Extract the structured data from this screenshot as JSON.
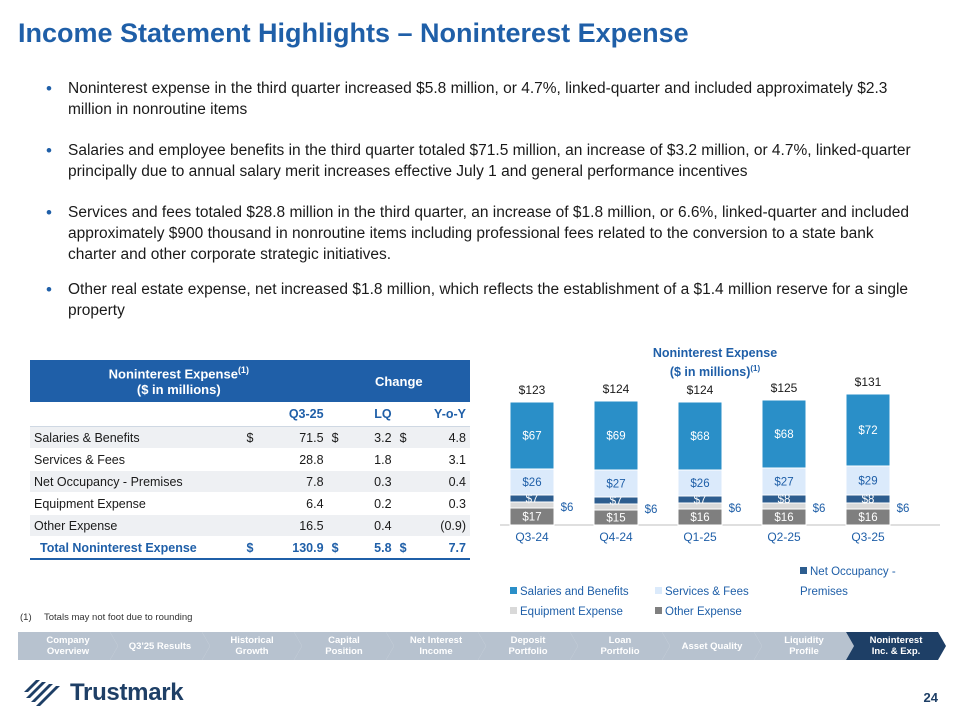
{
  "title": "Income Statement Highlights – Noninterest Expense",
  "bullets": [
    "Noninterest expense in the third quarter increased $5.8 million, or 4.7%, linked-quarter and included approximately $2.3 million in nonroutine items",
    "Salaries and employee benefits in the third quarter totaled $71.5 million, an increase of $3.2 million, or 4.7%, linked-quarter principally due to annual salary merit increases effective July 1 and general performance incentives",
    "Services and fees totaled $28.8 million in the third quarter, an increase of $1.8 million, or 6.6%, linked-quarter and included approximately $900 thousand  in nonroutine items including professional fees related to the conversion to a state bank charter and other corporate strategic initiatives.",
    "Other real estate expense, net increased $1.8 million, which reflects the establishment of a $1.4 million reserve for a single property"
  ],
  "table": {
    "header_title": "Noninterest Expense",
    "header_sup": "(1)",
    "header_subtitle": "($ in millions)",
    "header_change": "Change",
    "columns": [
      "Q3-25",
      "LQ",
      "Y-o-Y"
    ],
    "rows": [
      {
        "label": "Salaries & Benefits",
        "cur1": "$",
        "v1": "71.5",
        "cur2": "$",
        "v2": "3.2",
        "cur3": "$",
        "v3": "4.8"
      },
      {
        "label": "Services & Fees",
        "cur1": "",
        "v1": "28.8",
        "cur2": "",
        "v2": "1.8",
        "cur3": "",
        "v3": "3.1"
      },
      {
        "label": "Net Occupancy - Premises",
        "cur1": "",
        "v1": "7.8",
        "cur2": "",
        "v2": "0.3",
        "cur3": "",
        "v3": "0.4"
      },
      {
        "label": "Equipment Expense",
        "cur1": "",
        "v1": "6.4",
        "cur2": "",
        "v2": "0.2",
        "cur3": "",
        "v3": "0.3"
      },
      {
        "label": "Other Expense",
        "cur1": "",
        "v1": "16.5",
        "cur2": "",
        "v2": "0.4",
        "cur3": "",
        "v3": "(0.9)"
      }
    ],
    "total": {
      "label": "Total Noninterest Expense",
      "cur1": "$",
      "v1": "130.9",
      "cur2": "$",
      "v2": "5.8",
      "cur3": "$",
      "v3": "7.7"
    }
  },
  "footnote": {
    "num": "(1)",
    "text": "Totals may not foot due to rounding"
  },
  "chart_data": {
    "type": "bar",
    "title_line1": "Noninterest Expense",
    "title_line2": "($ in millions)",
    "title_sup": "(1)",
    "categories": [
      "Q3-24",
      "Q4-24",
      "Q1-25",
      "Q2-25",
      "Q3-25"
    ],
    "totals": [
      123,
      124,
      124,
      125,
      131
    ],
    "total_labels": [
      "$123",
      "$124",
      "$124",
      "$125",
      "$131"
    ],
    "series": [
      {
        "name": "Other Expense",
        "values": [
          17,
          15,
          16,
          16,
          16
        ],
        "color": "#7f7f7f",
        "labels": [
          "$17",
          "$15",
          "$16",
          "$16",
          "$16"
        ]
      },
      {
        "name": "Equipment Expense",
        "values": [
          6,
          6,
          6,
          6,
          6
        ],
        "color": "#d9d9d9",
        "labels": [
          "$6",
          "$6",
          "$6",
          "$6",
          "$6"
        ]
      },
      {
        "name": "Net Occupancy - Premises",
        "values": [
          7,
          7,
          7,
          8,
          8
        ],
        "color": "#2d5d8f",
        "labels": [
          "$7",
          "$7",
          "$7",
          "$8",
          "$8"
        ]
      },
      {
        "name": "Services & Fees",
        "values": [
          26,
          27,
          26,
          27,
          29
        ],
        "color": "#dbeafb",
        "labels": [
          "$26",
          "$27",
          "$26",
          "$27",
          "$29"
        ]
      },
      {
        "name": "Salaries and Benefits",
        "values": [
          67,
          69,
          68,
          68,
          72
        ],
        "color": "#2a8fc8",
        "labels": [
          "$67",
          "$69",
          "$68",
          "$68",
          "$72"
        ]
      }
    ],
    "legend_order": [
      "Salaries and Benefits",
      "Services & Fees",
      "Net Occupancy - Premises",
      "Equipment Expense",
      "Other Expense"
    ],
    "legend_colors": [
      "#2a8fc8",
      "#dbeafb",
      "#2d5d8f",
      "#d9d9d9",
      "#7f7f7f"
    ],
    "legend_placement": "bottom",
    "grid": false
  },
  "nav": [
    {
      "line1": "Company",
      "line2": "Overview",
      "active": false
    },
    {
      "line1": "Q3'25 Results",
      "line2": "",
      "active": false
    },
    {
      "line1": "Historical",
      "line2": "Growth",
      "active": false
    },
    {
      "line1": "Capital",
      "line2": "Position",
      "active": false
    },
    {
      "line1": "Net Interest",
      "line2": "Income",
      "active": false
    },
    {
      "line1": "Deposit",
      "line2": "Portfolio",
      "active": false
    },
    {
      "line1": "Loan",
      "line2": "Portfolio",
      "active": false
    },
    {
      "line1": "Asset Quality",
      "line2": "",
      "active": false
    },
    {
      "line1": "Liquidity",
      "line2": "Profile",
      "active": false
    },
    {
      "line1": "Noninterest",
      "line2": "Inc. & Exp.",
      "active": true
    }
  ],
  "logo_text": "Trustmark",
  "page_number": "24",
  "colors": {
    "brand_blue": "#1f5fa8",
    "navy": "#1e3f66",
    "nav_gray": "#b7c2cf"
  }
}
